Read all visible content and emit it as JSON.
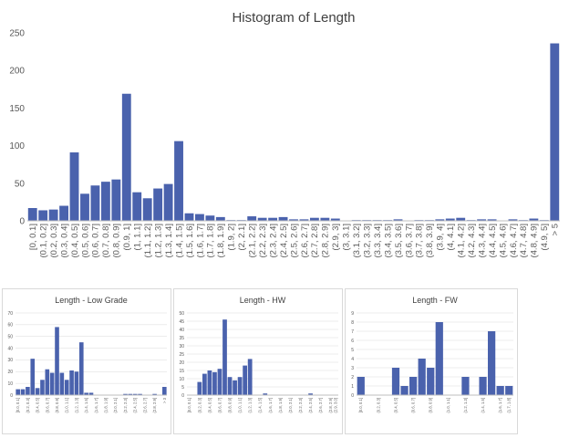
{
  "colors": {
    "bar": "#4a62ad",
    "axis": "#bfbfbf",
    "grid": "#d9d9d9",
    "text": "#595959",
    "title": "#404040"
  },
  "chart_data": [
    {
      "type": "bar",
      "title": "Histogram of Length",
      "xlabel": "",
      "ylabel": "",
      "ylim": [
        0,
        250
      ],
      "yticks": [
        0,
        50,
        100,
        150,
        200,
        250
      ],
      "grid": false,
      "categories": [
        "[0, 0.1]",
        "(0.1, 0.2]",
        "(0.2, 0.3]",
        "(0.3, 0.4]",
        "(0.4, 0.5]",
        "(0.5, 0.6]",
        "(0.6, 0.7]",
        "(0.7, 0.8]",
        "(0.8, 0.9]",
        "(0.9, 1]",
        "(1, 1.1]",
        "(1.1, 1.2]",
        "(1.2, 1.3]",
        "(1.3, 1.4]",
        "(1.4, 1.5]",
        "(1.5, 1.6]",
        "(1.6, 1.7]",
        "(1.7, 1.8]",
        "(1.8, 1.9]",
        "(1.9, 2]",
        "(2, 2.1]",
        "(2.1, 2.2]",
        "(2.2, 2.3]",
        "(2.3, 2.4]",
        "(2.4, 2.5]",
        "(2.5, 2.6]",
        "(2.6, 2.7]",
        "(2.7, 2.8]",
        "(2.8, 2.9]",
        "(2.9, 3]",
        "(3, 3.1]",
        "(3.1, 3.2]",
        "(3.2, 3.3]",
        "(3.3, 3.4]",
        "(3.4, 3.5]",
        "(3.5, 3.6]",
        "(3.6, 3.7]",
        "(3.7, 3.8]",
        "(3.8, 3.9]",
        "(3.9, 4]",
        "(4, 4.1]",
        "(4.1, 4.2]",
        "(4.2, 4.3]",
        "(4.3, 4.4]",
        "(4.4, 4.5]",
        "(4.5, 4.6]",
        "(4.6, 4.7]",
        "(4.7, 4.8]",
        "(4.8, 4.9]",
        "(4.9, 5]",
        "> 5"
      ],
      "label_every": 1,
      "values": [
        17,
        14,
        15,
        20,
        91,
        36,
        47,
        52,
        55,
        169,
        38,
        30,
        43,
        49,
        106,
        10,
        9,
        7,
        5,
        1,
        1,
        6,
        4,
        4,
        5,
        2,
        2,
        4,
        4,
        3,
        0,
        1,
        1,
        1,
        1,
        2,
        0,
        1,
        1,
        2,
        3,
        4,
        1,
        2,
        2,
        0,
        2,
        1,
        3,
        1,
        236
      ]
    },
    {
      "type": "bar",
      "title": "Length - Low Grade",
      "xlabel": "",
      "ylabel": "",
      "ylim": [
        0,
        70
      ],
      "yticks": [
        0,
        10,
        20,
        30,
        40,
        50,
        60,
        70
      ],
      "grid": true,
      "categories": [
        "[0.0, 0.1]",
        "(0.1, 0.2]",
        "(0.2, 0.3]",
        "(0.3, 0.4]",
        "(0.4, 0.5]",
        "(0.5, 0.6]",
        "(0.6, 0.7]",
        "(0.7, 0.8]",
        "(0.8, 0.9]",
        "(0.9, 1.0]",
        "(1.0, 1.1]",
        "(1.1, 1.2]",
        "(1.2, 1.3]",
        "(1.3, 1.4]",
        "(1.4, 1.5]",
        "(1.5, 1.6]",
        "(1.6, 1.7]",
        "(1.7, 1.8]",
        "(1.8, 1.9]",
        "(1.9, 2.0]",
        "(2.0, 2.1]",
        "(2.1, 2.2]",
        "(2.2, 2.3]",
        "(2.3, 2.4]",
        "(2.4, 2.5]",
        "(2.5, 2.6]",
        "(2.6, 2.7]",
        "(2.7, 2.8]",
        "(2.8, 2.9]",
        "(2.9, 3.0]",
        "> 3"
      ],
      "label_every": 2,
      "values": [
        5,
        5,
        7,
        31,
        6,
        13,
        22,
        19,
        58,
        19,
        13,
        21,
        20,
        45,
        2,
        2,
        0,
        0,
        0,
        0,
        0,
        0,
        1,
        1,
        1,
        1,
        0,
        0,
        1,
        0,
        7
      ]
    },
    {
      "type": "bar",
      "title": "Length - HW",
      "xlabel": "",
      "ylabel": "",
      "ylim": [
        0,
        50
      ],
      "yticks": [
        0,
        5,
        10,
        15,
        20,
        25,
        30,
        35,
        40,
        45,
        50
      ],
      "grid": true,
      "categories": [
        "[0.0, 0.1]",
        "(0.1, 0.2]",
        "(0.2, 0.3]",
        "(0.3, 0.4]",
        "(0.4, 0.5]",
        "(0.5, 0.6]",
        "(0.6, 0.7]",
        "(0.7, 0.8]",
        "(0.8, 0.9]",
        "(0.9, 1.0]",
        "(1.0, 1.1]",
        "(1.1, 1.2]",
        "(1.2, 1.3]",
        "(1.3, 1.4]",
        "(1.4, 1.5]",
        "(1.5, 1.6]",
        "(1.6, 1.7]",
        "(1.7, 1.8]",
        "(1.8, 1.9]",
        "(1.9, 2.0]",
        "(2.0, 2.1]",
        "(2.1, 2.2]",
        "(2.2, 2.3]",
        "(2.3, 2.4]",
        "(2.4, 2.5]",
        "(2.5, 2.6]",
        "(2.6, 2.7]",
        "(2.7, 2.8]",
        "(2.8, 2.9]",
        "(2.9, 3.0]"
      ],
      "label_every": 2,
      "values": [
        0,
        0,
        8,
        13,
        15,
        14,
        16,
        46,
        11,
        9,
        11,
        18,
        22,
        0,
        0,
        1,
        0,
        0,
        0,
        0,
        0,
        0,
        0,
        0,
        1,
        0,
        0,
        0,
        0,
        0
      ]
    },
    {
      "type": "bar",
      "title": "Length - FW",
      "xlabel": "",
      "ylabel": "",
      "ylim": [
        0,
        9
      ],
      "yticks": [
        0,
        1,
        2,
        3,
        4,
        5,
        6,
        7,
        8,
        9
      ],
      "grid": true,
      "categories": [
        "[0.0, 0.1]",
        "(0.1, 0.2]",
        "(0.2, 0.3]",
        "(0.3, 0.4]",
        "(0.4, 0.5]",
        "(0.5, 0.6]",
        "(0.6, 0.7]",
        "(0.7, 0.8]",
        "(0.8, 0.9]",
        "(0.9, 1.0]",
        "(1.0, 1.1]",
        "(1.1, 1.2]",
        "(1.2, 1.3]",
        "(1.3, 1.4]",
        "(1.4, 1.5]",
        "(1.5, 1.6]",
        "(1.6, 1.7]",
        "(1.7, 1.8]"
      ],
      "label_every": 2,
      "values": [
        2,
        0,
        0,
        0,
        3,
        1,
        2,
        4,
        3,
        8,
        0,
        0,
        2,
        0,
        2,
        7,
        1,
        1
      ]
    }
  ]
}
